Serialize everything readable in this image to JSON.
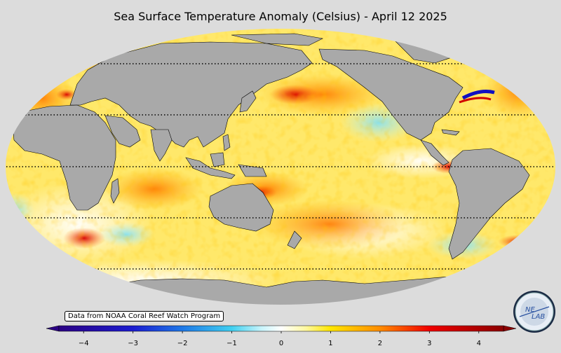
{
  "title": "Sea Surface Temperature Anomaly (Celsius) - April 12 2025",
  "credit": "Data from NOAA Coral Reef Watch Program",
  "logo": {
    "text_top": "NE",
    "text_bottom": "LAB"
  },
  "colorbar": {
    "min": -4.5,
    "max": 4.5,
    "ticks": [
      {
        "value": -4,
        "label": "−4"
      },
      {
        "value": -3,
        "label": "−3"
      },
      {
        "value": -2,
        "label": "−2"
      },
      {
        "value": -1,
        "label": "−1"
      },
      {
        "value": 0,
        "label": "0"
      },
      {
        "value": 1,
        "label": "1"
      },
      {
        "value": 2,
        "label": "2"
      },
      {
        "value": 3,
        "label": "3"
      },
      {
        "value": 4,
        "label": "4"
      }
    ],
    "stops": [
      {
        "value": -4.5,
        "color": "#2b0083"
      },
      {
        "value": -3,
        "color": "#1c1cd0"
      },
      {
        "value": -2,
        "color": "#1e78e6"
      },
      {
        "value": -1,
        "color": "#40d0f0"
      },
      {
        "value": -0.4,
        "color": "#c8f4fb"
      },
      {
        "value": 0,
        "color": "#ffffff"
      },
      {
        "value": 0.5,
        "color": "#fff8a0"
      },
      {
        "value": 1,
        "color": "#ffe600"
      },
      {
        "value": 2,
        "color": "#ff8c00"
      },
      {
        "value": 3,
        "color": "#f00000"
      },
      {
        "value": 4.5,
        "color": "#8c0000"
      }
    ]
  },
  "colors": {
    "background": "#dcdcdc",
    "land": "#a9a9a9",
    "ocean_base": "#ffe86a"
  }
}
